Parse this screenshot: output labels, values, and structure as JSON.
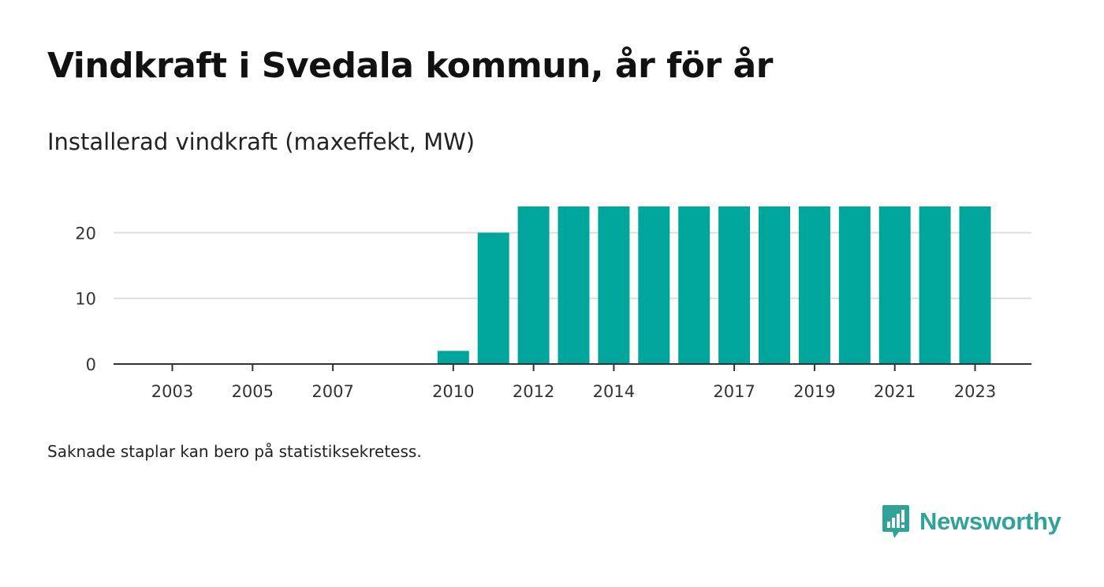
{
  "header": {
    "title": "Vindkraft i Svedala kommun, år för år",
    "subtitle": "Installerad vindkraft (maxeffekt, MW)"
  },
  "footer": {
    "note": "Saknade staplar kan bero på statistiksekretess.",
    "brand": "Newsworthy"
  },
  "colors": {
    "bar": "#00a59b",
    "grid": "#dddddd",
    "axis": "#333333",
    "brand": "#2fa398"
  },
  "chart_data": {
    "type": "bar",
    "title": "Vindkraft i Svedala kommun, år för år",
    "subtitle": "Installerad vindkraft (maxeffekt, MW)",
    "xlabel": "",
    "ylabel": "",
    "categories": [
      "2003",
      "2004",
      "2005",
      "2006",
      "2007",
      "2008",
      "2009",
      "2010",
      "2011",
      "2012",
      "2013",
      "2014",
      "2015",
      "2016",
      "2017",
      "2018",
      "2019",
      "2020",
      "2021",
      "2022",
      "2023"
    ],
    "values": [
      0,
      0,
      0,
      0,
      0,
      0,
      0,
      2,
      20,
      24,
      24,
      24,
      24,
      24,
      24,
      24,
      24,
      24,
      24,
      24,
      24
    ],
    "x_tick_labels": [
      "2003",
      "2005",
      "2007",
      "2010",
      "2012",
      "2014",
      "2017",
      "2019",
      "2021",
      "2023"
    ],
    "y_ticks": [
      0,
      10,
      20
    ],
    "ylim": [
      0,
      24
    ],
    "grid": true,
    "legend": "none"
  }
}
